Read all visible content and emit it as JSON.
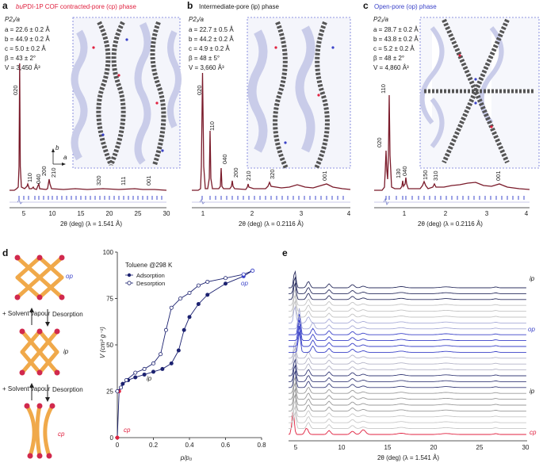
{
  "panels": {
    "a": {
      "letter": "a",
      "title_prefix": "bu",
      "title": "PDI-1P COF contracted-pore (cp) phase",
      "space_group": "P2₁/a",
      "params": [
        "a = 22.6 ± 0.2 Å",
        "b = 44.9 ± 0.2 Å",
        "c = 5.0 ± 0.2 Å",
        "β = 43 ± 2°",
        "V = 3,450 Å³"
      ],
      "peaks": [
        "020",
        "110",
        "040",
        "200",
        "210",
        "320",
        "111",
        "001"
      ],
      "axis_label": "2θ (deg) (λ = 1.541 Å)",
      "ticks": [
        "5",
        "10",
        "15",
        "20",
        "25",
        "30"
      ],
      "axis_b": "b",
      "axis_a": "a"
    },
    "b": {
      "letter": "b",
      "title": "Intermediate-pore (ip) phase",
      "space_group": "P2₁/a",
      "params": [
        "a = 22.7 ± 0.5 Å",
        "b = 44.2 ± 0.2 Å",
        "c = 4.9 ± 0.2 Å",
        "β = 48 ± 5°",
        "V = 3,660 Å³"
      ],
      "peaks": [
        "020",
        "110",
        "040",
        "200",
        "210",
        "320",
        "001"
      ],
      "axis_label": "2θ (deg) (λ = 0.2116 Å)",
      "ticks": [
        "1",
        "2",
        "3",
        "4"
      ]
    },
    "c": {
      "letter": "c",
      "title": "Open-pore (op) phase",
      "space_group": "P2₁/a",
      "params": [
        "a = 28.7 ± 0.2 Å",
        "b = 43.8 ± 0.2 Å",
        "c = 5.2 ± 0.2 Å",
        "β = 48 ± 2°",
        "V = 4,860 Å³"
      ],
      "peaks": [
        "110",
        "020",
        "130",
        "040",
        "150",
        "310",
        "001"
      ],
      "axis_label": "2θ (deg) (λ = 0.2116 Å)",
      "ticks": [
        "1",
        "2",
        "3",
        "4"
      ]
    },
    "d": {
      "letter": "d",
      "steps": [
        {
          "label": "+ Solvent vapour",
          "reverse": "Desorption"
        },
        {
          "label": "+ Solvent vapour",
          "reverse": "Desorption"
        }
      ],
      "phase_labels": [
        "op",
        "ip",
        "cp"
      ]
    },
    "e": {
      "letter": "e",
      "axis_label": "2θ (deg) (λ = 1.541 Å)",
      "ticks": [
        "5",
        "10",
        "15",
        "20",
        "25",
        "30"
      ],
      "right_labels": [
        "ip",
        "op",
        "ip",
        "cp"
      ]
    }
  },
  "colors": {
    "red": "#e0213f",
    "blue": "#3a42c8",
    "navy": "#1c2270",
    "grey": "#9a9a9a"
  },
  "chart_data": {
    "type": "line",
    "title": "Toluene @298 K",
    "xlabel": "p/p₀",
    "ylabel": "V (cm³ g⁻¹)",
    "xlim": [
      0,
      0.8
    ],
    "ylim": [
      0,
      100
    ],
    "xticks": [
      "0",
      "0.2",
      "0.4",
      "0.6",
      "0.8"
    ],
    "yticks": [
      "0",
      "25",
      "50",
      "75",
      "100"
    ],
    "series": [
      {
        "name": "Adsorption",
        "x": [
          0.0,
          0.01,
          0.03,
          0.06,
          0.1,
          0.15,
          0.2,
          0.25,
          0.3,
          0.34,
          0.37,
          0.4,
          0.45,
          0.5,
          0.6,
          0.7,
          0.75
        ],
        "y": [
          0,
          25,
          29,
          31,
          32.5,
          34,
          35.5,
          37,
          40,
          47,
          58,
          65,
          72,
          77,
          83,
          87,
          90
        ]
      },
      {
        "name": "Desorption",
        "x": [
          0.75,
          0.7,
          0.6,
          0.5,
          0.45,
          0.4,
          0.35,
          0.3,
          0.27,
          0.24,
          0.2,
          0.15,
          0.1,
          0.05,
          0.02,
          0.0
        ],
        "y": [
          90,
          88,
          86,
          84,
          82,
          78,
          75,
          70,
          58,
          45,
          40,
          37,
          35,
          31,
          27,
          25
        ]
      }
    ],
    "annotations": [
      "op",
      "ip",
      "cp"
    ]
  }
}
